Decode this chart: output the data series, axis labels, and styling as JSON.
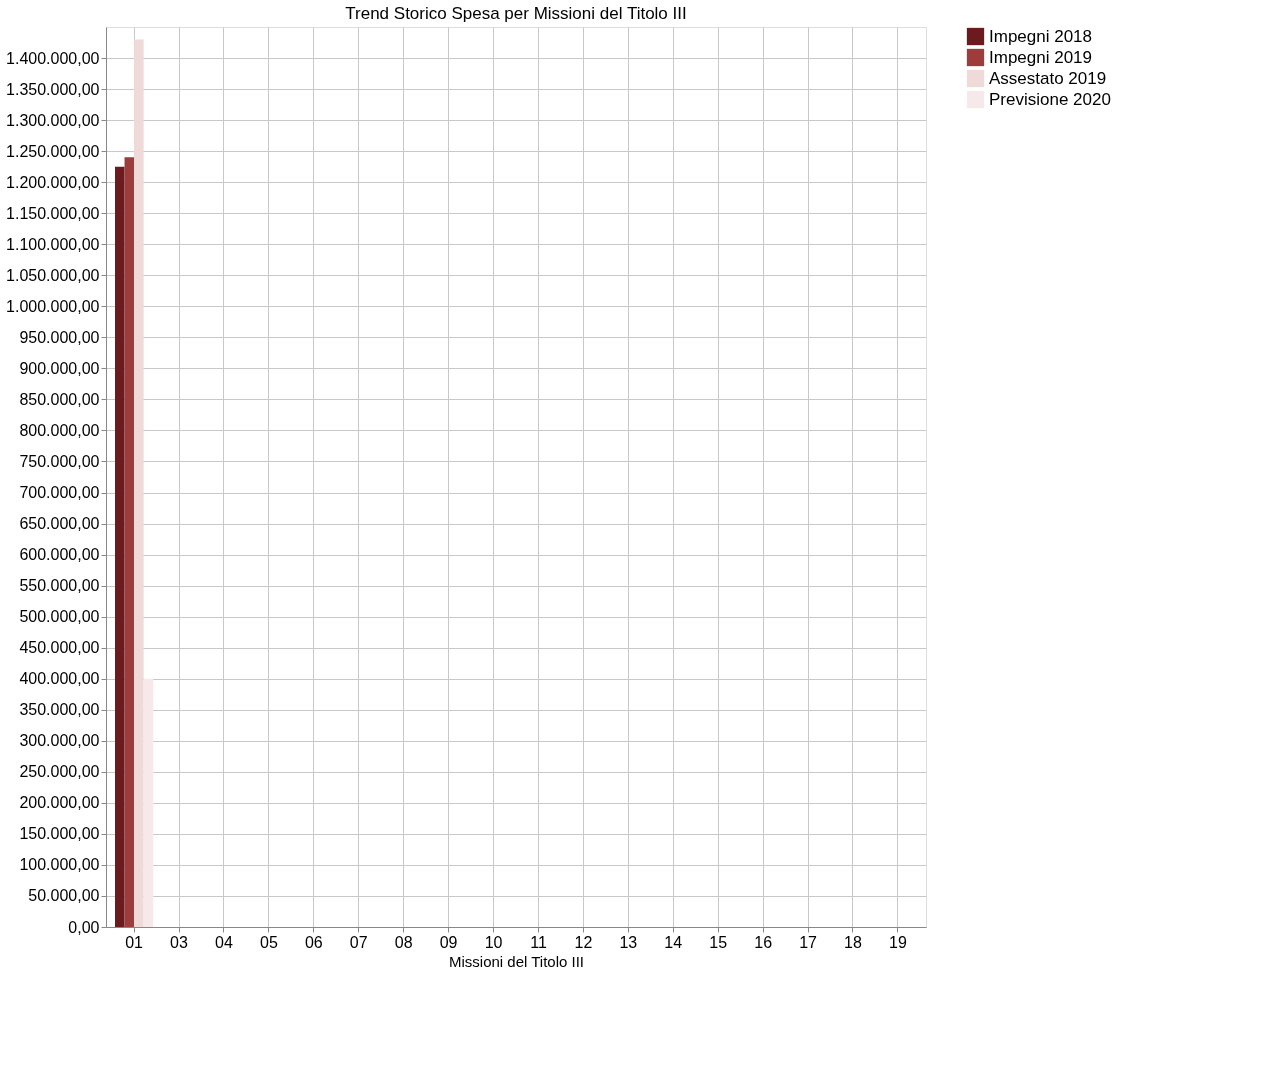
{
  "chart_data": {
    "type": "bar",
    "title": "Trend Storico Spesa per Missioni del Titolo III",
    "xlabel": "Missioni del Titolo III",
    "categories": [
      "01",
      "03",
      "04",
      "05",
      "06",
      "07",
      "08",
      "09",
      "10",
      "11",
      "12",
      "13",
      "14",
      "15",
      "16",
      "17",
      "18",
      "19"
    ],
    "series": [
      {
        "name": "Impegni 2018",
        "color": "#6b1a1e",
        "values": [
          1225000,
          0,
          0,
          0,
          0,
          0,
          0,
          0,
          0,
          0,
          0,
          0,
          0,
          0,
          0,
          0,
          0,
          0
        ]
      },
      {
        "name": "Impegni 2019",
        "color": "#9e3b3b",
        "values": [
          1240000,
          0,
          0,
          0,
          0,
          0,
          0,
          0,
          0,
          0,
          0,
          0,
          0,
          0,
          0,
          0,
          0,
          0
        ]
      },
      {
        "name": "Assestato 2019",
        "color": "#f0d9d9",
        "values": [
          1430000,
          0,
          0,
          0,
          0,
          0,
          0,
          0,
          0,
          0,
          0,
          0,
          0,
          0,
          0,
          0,
          0,
          0
        ]
      },
      {
        "name": "Previsione 2020",
        "color": "#f7e9e9",
        "values": [
          400000,
          0,
          0,
          0,
          0,
          0,
          0,
          0,
          0,
          0,
          0,
          0,
          0,
          0,
          0,
          0,
          0,
          0
        ]
      }
    ],
    "ylim": [
      0,
      1450000
    ],
    "yticks": [
      {
        "value": 0,
        "label": "0,00"
      },
      {
        "value": 50000,
        "label": "50.000,00"
      },
      {
        "value": 100000,
        "label": "100.000,00"
      },
      {
        "value": 150000,
        "label": "150.000,00"
      },
      {
        "value": 200000,
        "label": "200.000,00"
      },
      {
        "value": 250000,
        "label": "250.000,00"
      },
      {
        "value": 300000,
        "label": "300.000,00"
      },
      {
        "value": 350000,
        "label": "350.000,00"
      },
      {
        "value": 400000,
        "label": "400.000,00"
      },
      {
        "value": 450000,
        "label": "450.000,00"
      },
      {
        "value": 500000,
        "label": "500.000,00"
      },
      {
        "value": 550000,
        "label": "550.000,00"
      },
      {
        "value": 600000,
        "label": "600.000,00"
      },
      {
        "value": 650000,
        "label": "650.000,00"
      },
      {
        "value": 700000,
        "label": "700.000,00"
      },
      {
        "value": 750000,
        "label": "750.000,00"
      },
      {
        "value": 800000,
        "label": "800.000,00"
      },
      {
        "value": 850000,
        "label": "850.000,00"
      },
      {
        "value": 900000,
        "label": "900.000,00"
      },
      {
        "value": 950000,
        "label": "950.000,00"
      },
      {
        "value": 1000000,
        "label": "1.000.000,00"
      },
      {
        "value": 1050000,
        "label": "1.050.000,00"
      },
      {
        "value": 1100000,
        "label": "1.100.000,00"
      },
      {
        "value": 1150000,
        "label": "1.150.000,00"
      },
      {
        "value": 1200000,
        "label": "1.200.000,00"
      },
      {
        "value": 1250000,
        "label": "1.250.000,00"
      },
      {
        "value": 1300000,
        "label": "1.300.000,00"
      },
      {
        "value": 1350000,
        "label": "1.350.000,00"
      },
      {
        "value": 1400000,
        "label": "1.400.000,00"
      }
    ],
    "grid": true,
    "legend": "top right"
  }
}
